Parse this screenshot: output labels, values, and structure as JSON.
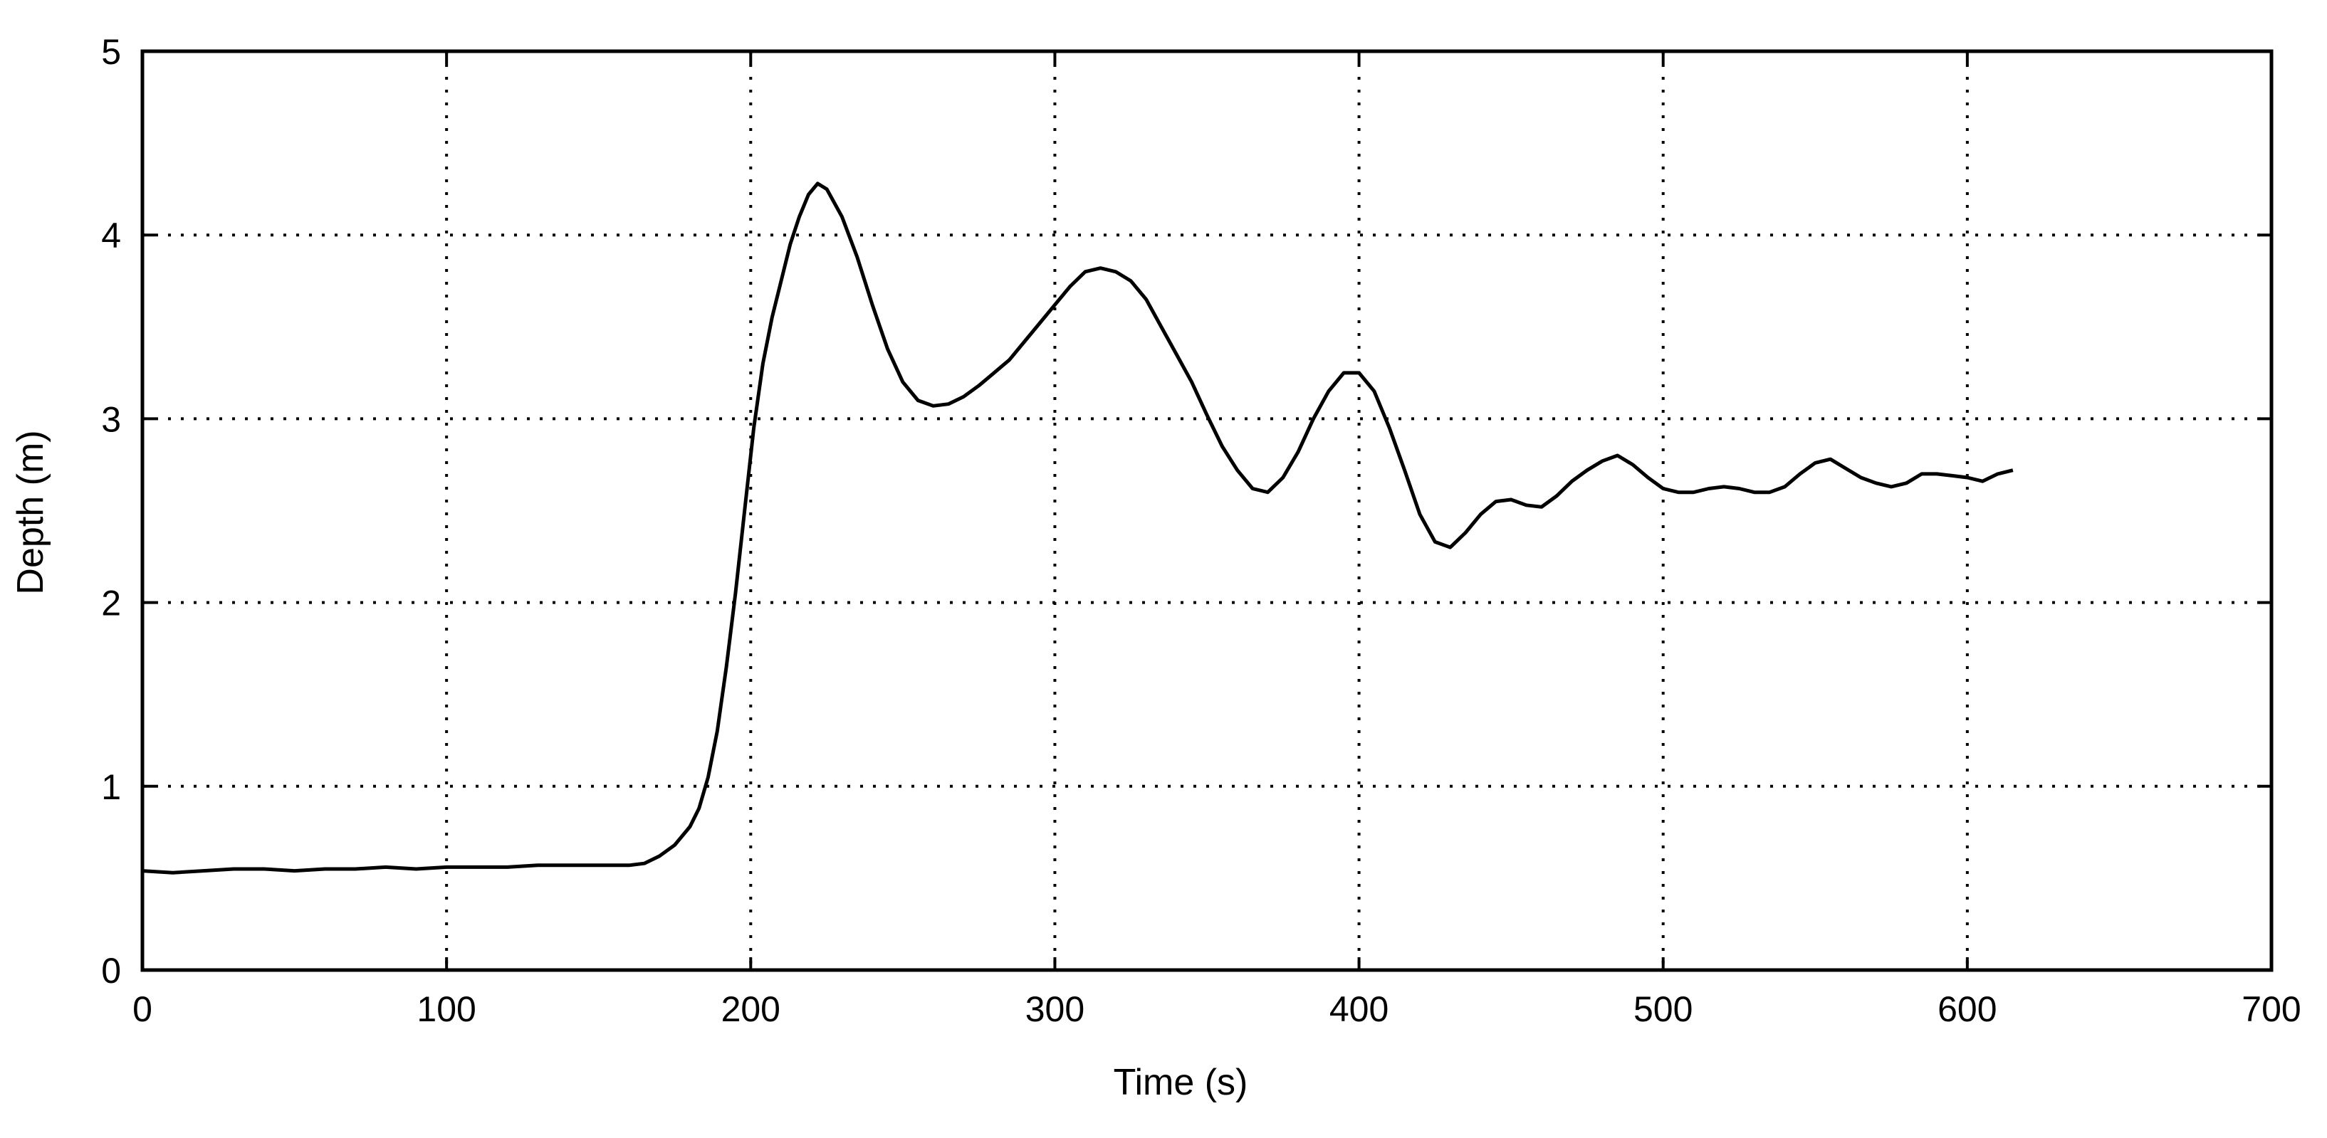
{
  "chart_data": {
    "type": "line",
    "title": "",
    "xlabel": "Time (s)",
    "ylabel": "Depth (m)",
    "xlim": [
      0,
      700
    ],
    "ylim": [
      0,
      5
    ],
    "xticks": [
      0,
      100,
      200,
      300,
      400,
      500,
      600,
      700
    ],
    "yticks": [
      0,
      1,
      2,
      3,
      4,
      5
    ],
    "xtick_labels": [
      "0",
      "100",
      "200",
      "300",
      "400",
      "500",
      "600",
      "700"
    ],
    "ytick_labels": [
      "0",
      "1",
      "2",
      "3",
      "4",
      "5"
    ],
    "grid": true,
    "grid_style": "dotted",
    "line_color": "#000000",
    "series": [
      {
        "x": [
          0,
          10,
          20,
          30,
          40,
          50,
          60,
          70,
          80,
          90,
          100,
          110,
          120,
          130,
          140,
          150,
          160,
          165,
          170,
          175,
          180,
          183,
          186,
          189,
          192,
          195,
          198,
          201,
          204,
          207,
          210,
          213,
          216,
          219,
          222,
          225,
          230,
          235,
          240,
          245,
          250,
          255,
          260,
          265,
          270,
          275,
          280,
          285,
          290,
          295,
          300,
          305,
          310,
          315,
          320,
          325,
          330,
          335,
          340,
          345,
          350,
          355,
          360,
          365,
          370,
          375,
          380,
          385,
          390,
          395,
          400,
          405,
          410,
          415,
          420,
          425,
          430,
          435,
          440,
          445,
          450,
          455,
          460,
          465,
          470,
          475,
          480,
          485,
          490,
          495,
          500,
          505,
          510,
          515,
          520,
          525,
          530,
          535,
          540,
          545,
          550,
          555,
          560,
          565,
          570,
          575,
          580,
          585,
          590,
          595,
          600,
          605,
          610,
          615
        ],
        "y": [
          0.54,
          0.53,
          0.54,
          0.55,
          0.55,
          0.54,
          0.55,
          0.55,
          0.56,
          0.55,
          0.56,
          0.56,
          0.56,
          0.57,
          0.57,
          0.57,
          0.57,
          0.58,
          0.62,
          0.68,
          0.78,
          0.88,
          1.05,
          1.3,
          1.65,
          2.05,
          2.5,
          2.95,
          3.3,
          3.55,
          3.75,
          3.95,
          4.1,
          4.22,
          4.28,
          4.25,
          4.1,
          3.88,
          3.62,
          3.38,
          3.2,
          3.1,
          3.07,
          3.08,
          3.12,
          3.18,
          3.25,
          3.32,
          3.42,
          3.52,
          3.62,
          3.72,
          3.8,
          3.82,
          3.8,
          3.75,
          3.65,
          3.5,
          3.35,
          3.2,
          3.02,
          2.85,
          2.72,
          2.62,
          2.6,
          2.68,
          2.82,
          3.0,
          3.15,
          3.25,
          3.25,
          3.15,
          2.95,
          2.72,
          2.48,
          2.33,
          2.3,
          2.38,
          2.48,
          2.55,
          2.56,
          2.53,
          2.52,
          2.58,
          2.66,
          2.72,
          2.77,
          2.8,
          2.75,
          2.68,
          2.62,
          2.6,
          2.6,
          2.62,
          2.63,
          2.62,
          2.6,
          2.6,
          2.63,
          2.7,
          2.76,
          2.78,
          2.73,
          2.68,
          2.65,
          2.63,
          2.65,
          2.7,
          2.7,
          2.69,
          2.68,
          2.66,
          2.7,
          2.72
        ]
      }
    ]
  }
}
